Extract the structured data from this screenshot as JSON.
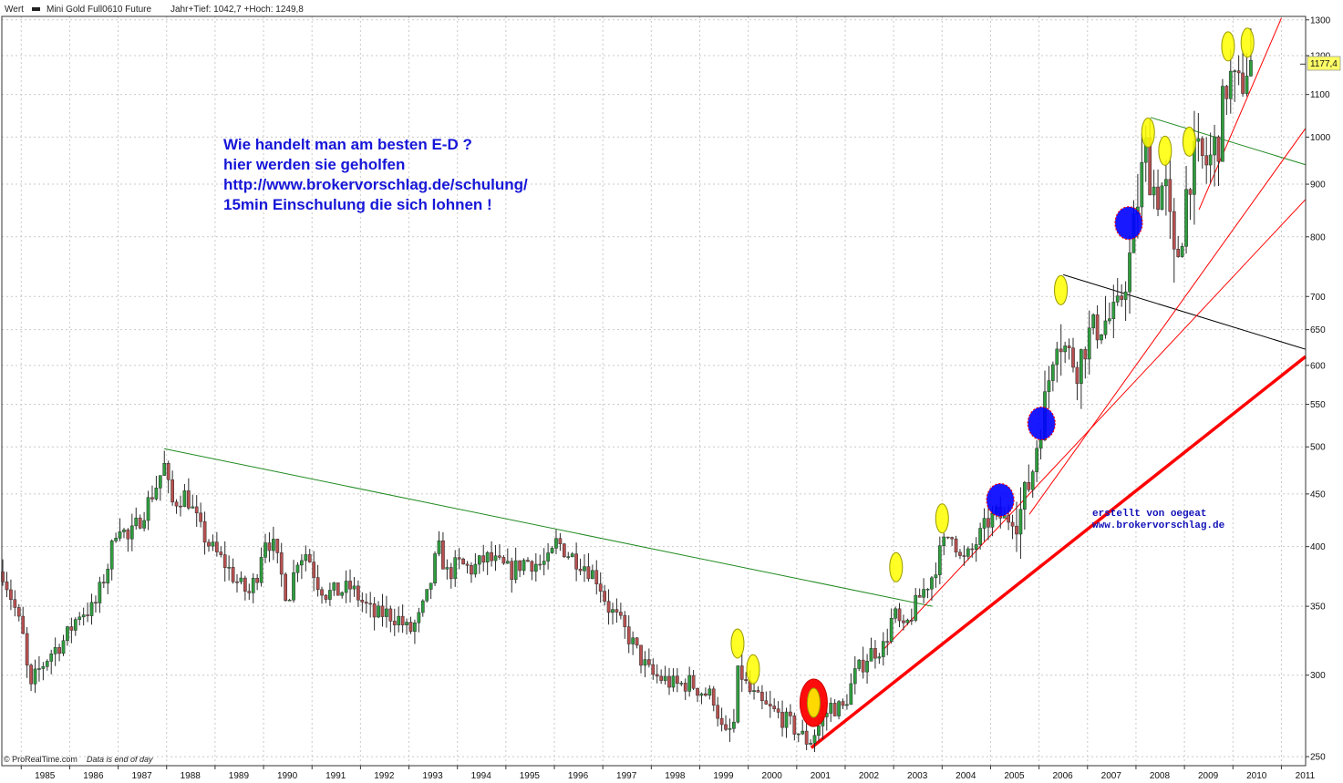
{
  "header": {
    "label": "Wert",
    "series_name": "Mini Gold Full0610 Future",
    "stats": "Jahr+Tief: 1042,7 +Hoch: 1249,8"
  },
  "annotation": {
    "lines": [
      "Wie handelt man am besten  E-D ?",
      "hier werden sie geholfen",
      "http://www.brokervorschlag.de/schulung/",
      "15min Einschulung die sich lohnen !"
    ]
  },
  "credit": {
    "line1": "erstellt von oegeat",
    "line2": "www.brokervorschlag.de"
  },
  "footer": {
    "brand": "© ProRealTime.com",
    "note": "Data is end of day"
  },
  "colors": {
    "up_candle": "#2e9e3e",
    "down_candle": "#b85050",
    "support_red": "#ff0000",
    "green_trend": "#208a20",
    "black_trend": "#000000",
    "yellow_marker": "#ffff00",
    "blue_marker": "#0000ff",
    "price_badge": "#ffff66"
  },
  "chart_data": {
    "type": "candlestick",
    "y_scale": "log",
    "ylim": [
      245,
      1310
    ],
    "xlim": [
      1984.6,
      2011.5
    ],
    "y_ticks": [
      250,
      300,
      350,
      400,
      450,
      500,
      550,
      600,
      650,
      700,
      800,
      900,
      1000,
      1100,
      1200,
      1300
    ],
    "x_ticks": [
      "1985",
      "1986",
      "1987",
      "1988",
      "1989",
      "1990",
      "1991",
      "1992",
      "1993",
      "1994",
      "1995",
      "1996",
      "1997",
      "1998",
      "1999",
      "2000",
      "2001",
      "2002",
      "2003",
      "2004",
      "2005",
      "2006",
      "2007",
      "2008",
      "2009",
      "2010",
      "2011"
    ],
    "last_price": "1177,4",
    "price_path": [
      [
        1984.62,
        378
      ],
      [
        1984.9,
        345
      ],
      [
        1985.1,
        318
      ],
      [
        1985.15,
        285
      ],
      [
        1985.3,
        300
      ],
      [
        1985.6,
        315
      ],
      [
        1985.9,
        325
      ],
      [
        1986.2,
        345
      ],
      [
        1986.5,
        348
      ],
      [
        1986.8,
        385
      ],
      [
        1987.0,
        425
      ],
      [
        1987.2,
        405
      ],
      [
        1987.5,
        430
      ],
      [
        1987.8,
        460
      ],
      [
        1987.95,
        480
      ],
      [
        1988.1,
        440
      ],
      [
        1988.4,
        450
      ],
      [
        1988.7,
        415
      ],
      [
        1988.9,
        400
      ],
      [
        1989.2,
        385
      ],
      [
        1989.5,
        367
      ],
      [
        1989.7,
        360
      ],
      [
        1989.9,
        380
      ],
      [
        1990.0,
        410
      ],
      [
        1990.2,
        400
      ],
      [
        1990.4,
        370
      ],
      [
        1990.5,
        355
      ],
      [
        1990.7,
        390
      ],
      [
        1990.9,
        395
      ],
      [
        1991.1,
        370
      ],
      [
        1991.3,
        360
      ],
      [
        1991.6,
        362
      ],
      [
        1991.8,
        365
      ],
      [
        1992.0,
        355
      ],
      [
        1992.3,
        342
      ],
      [
        1992.5,
        345
      ],
      [
        1992.8,
        340
      ],
      [
        1993.0,
        330
      ],
      [
        1993.2,
        340
      ],
      [
        1993.4,
        360
      ],
      [
        1993.6,
        400
      ],
      [
        1993.8,
        375
      ],
      [
        1994.0,
        385
      ],
      [
        1994.3,
        380
      ],
      [
        1994.6,
        390
      ],
      [
        1994.9,
        383
      ],
      [
        1995.1,
        378
      ],
      [
        1995.4,
        388
      ],
      [
        1995.7,
        384
      ],
      [
        1995.9,
        387
      ],
      [
        1996.05,
        405
      ],
      [
        1996.3,
        393
      ],
      [
        1996.6,
        385
      ],
      [
        1996.9,
        372
      ],
      [
        1997.1,
        350
      ],
      [
        1997.3,
        340
      ],
      [
        1997.6,
        323
      ],
      [
        1997.8,
        310
      ],
      [
        1998.0,
        300
      ],
      [
        1998.2,
        298
      ],
      [
        1998.5,
        293
      ],
      [
        1998.8,
        295
      ],
      [
        1999.0,
        290
      ],
      [
        1999.3,
        285
      ],
      [
        1999.5,
        260
      ],
      [
        1999.7,
        268
      ],
      [
        1999.8,
        305
      ],
      [
        2000.0,
        290
      ],
      [
        2000.3,
        280
      ],
      [
        2000.6,
        275
      ],
      [
        2000.9,
        268
      ],
      [
        2001.1,
        262
      ],
      [
        2001.25,
        258
      ],
      [
        2001.5,
        270
      ],
      [
        2001.7,
        280
      ],
      [
        2001.95,
        278
      ],
      [
        2002.2,
        300
      ],
      [
        2002.5,
        315
      ],
      [
        2002.8,
        320
      ],
      [
        2003.0,
        345
      ],
      [
        2003.2,
        330
      ],
      [
        2003.5,
        355
      ],
      [
        2003.8,
        375
      ],
      [
        2004.0,
        400
      ],
      [
        2004.2,
        415
      ],
      [
        2004.4,
        385
      ],
      [
        2004.6,
        395
      ],
      [
        2004.9,
        420
      ],
      [
        2005.1,
        430
      ],
      [
        2005.3,
        425
      ],
      [
        2005.6,
        430
      ],
      [
        2005.85,
        470
      ],
      [
        2006.0,
        520
      ],
      [
        2006.15,
        560
      ],
      [
        2006.35,
        650
      ],
      [
        2006.6,
        615
      ],
      [
        2006.8,
        600
      ],
      [
        2007.0,
        640
      ],
      [
        2007.3,
        660
      ],
      [
        2007.6,
        670
      ],
      [
        2007.85,
        750
      ],
      [
        2008.0,
        850
      ],
      [
        2008.2,
        970
      ],
      [
        2008.4,
        880
      ],
      [
        2008.6,
        900
      ],
      [
        2008.8,
        740
      ],
      [
        2008.95,
        820
      ],
      [
        2009.1,
        930
      ],
      [
        2009.3,
        950
      ],
      [
        2009.5,
        940
      ],
      [
        2009.7,
        1000
      ],
      [
        2009.9,
        1150
      ],
      [
        2010.1,
        1100
      ],
      [
        2010.3,
        1180
      ],
      [
        2010.45,
        1177.4
      ]
    ],
    "trend_lines": [
      {
        "from": [
          1987.95,
          498
        ],
        "to": [
          2003.8,
          350
        ],
        "color": "#208a20",
        "width": 1
      },
      {
        "from": [
          2008.3,
          1045
        ],
        "to": [
          2011.5,
          940
        ],
        "color": "#208a20",
        "width": 1
      },
      {
        "from": [
          2006.5,
          735
        ],
        "to": [
          2011.5,
          622
        ],
        "color": "#000000",
        "width": 1
      },
      {
        "from": [
          2001.3,
          255
        ],
        "to": [
          2011.5,
          612
        ],
        "color": "#ff0000",
        "width": 3.5
      },
      {
        "from": [
          2002.8,
          318
        ],
        "to": [
          2011.5,
          870
        ],
        "color": "#ff0000",
        "width": 1
      },
      {
        "from": [
          2005.8,
          430
        ],
        "to": [
          2011.5,
          1020
        ],
        "color": "#ff0000",
        "width": 1
      },
      {
        "from": [
          2009.3,
          850
        ],
        "to": [
          2011.0,
          1305
        ],
        "color": "#ff0000",
        "width": 1
      }
    ],
    "markers": [
      {
        "x": 1999.78,
        "y": 322,
        "color": "yellow"
      },
      {
        "x": 2000.1,
        "y": 304,
        "color": "yellow"
      },
      {
        "x": 2001.35,
        "y": 282,
        "color": "red"
      },
      {
        "x": 2001.35,
        "y": 282,
        "color": "yellow"
      },
      {
        "x": 2003.05,
        "y": 382,
        "color": "yellow"
      },
      {
        "x": 2004.0,
        "y": 426,
        "color": "yellow"
      },
      {
        "x": 2005.2,
        "y": 444,
        "color": "blue"
      },
      {
        "x": 2006.05,
        "y": 527,
        "color": "blue"
      },
      {
        "x": 2006.45,
        "y": 710,
        "color": "yellow"
      },
      {
        "x": 2007.85,
        "y": 825,
        "color": "blue"
      },
      {
        "x": 2008.25,
        "y": 1010,
        "color": "yellow"
      },
      {
        "x": 2008.6,
        "y": 970,
        "color": "yellow"
      },
      {
        "x": 2009.1,
        "y": 990,
        "color": "yellow"
      },
      {
        "x": 2009.9,
        "y": 1225,
        "color": "yellow"
      },
      {
        "x": 2010.3,
        "y": 1235,
        "color": "yellow"
      }
    ]
  }
}
